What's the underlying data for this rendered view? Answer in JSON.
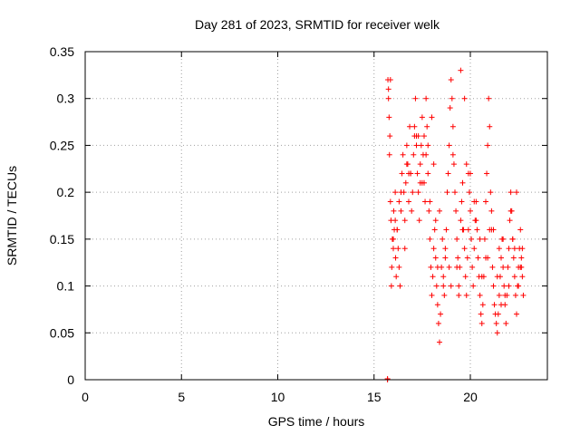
{
  "chart_data": {
    "type": "scatter",
    "title": "Day 281 of 2023, SRMTID for receiver welk",
    "xlabel": "GPS time / hours",
    "ylabel": "SRMTID / TECUs",
    "xlim": [
      0,
      24
    ],
    "ylim": [
      0,
      0.35
    ],
    "xticks": [
      0,
      5,
      10,
      15,
      20
    ],
    "xtick_labels": [
      "0",
      "5",
      "10",
      "15",
      "20"
    ],
    "yticks": [
      0,
      0.05,
      0.1,
      0.15,
      0.2,
      0.25,
      0.3,
      0.35
    ],
    "ytick_labels": [
      "0",
      "0.05",
      "0.1",
      "0.15",
      "0.2",
      "0.25",
      "0.3",
      "0.35"
    ],
    "grid": true,
    "marker": "+",
    "color": "#ff0000",
    "series": [
      {
        "name": "SRMTID",
        "x": [
          15.7,
          15.7,
          15.72,
          15.75,
          15.78,
          15.8,
          15.82,
          15.85,
          15.88,
          15.9,
          15.92,
          15.95,
          16.0,
          16.02,
          16.05,
          16.1,
          16.12,
          16.15,
          16.2,
          16.25,
          16.3,
          16.35,
          16.4,
          16.45,
          16.5,
          16.55,
          16.6,
          16.65,
          16.7,
          16.75,
          16.8,
          16.85,
          16.9,
          16.95,
          17.0,
          17.05,
          17.1,
          17.15,
          17.2,
          17.25,
          17.3,
          17.35,
          17.4,
          17.45,
          17.5,
          17.55,
          17.6,
          17.65,
          17.7,
          17.75,
          17.8,
          17.85,
          17.9,
          17.95,
          18.0,
          18.05,
          18.1,
          18.15,
          18.2,
          18.25,
          18.3,
          18.35,
          18.4,
          18.45,
          18.5,
          18.55,
          18.6,
          18.65,
          18.7,
          18.75,
          18.8,
          18.85,
          18.9,
          18.95,
          19.0,
          19.05,
          19.1,
          19.15,
          19.2,
          19.25,
          19.3,
          19.35,
          19.4,
          19.45,
          19.5,
          19.55,
          19.6,
          19.65,
          19.7,
          19.75,
          19.8,
          19.85,
          19.9,
          19.95,
          20.0,
          20.05,
          20.1,
          20.15,
          20.2,
          20.25,
          20.3,
          20.35,
          20.4,
          20.45,
          20.5,
          20.55,
          20.6,
          20.65,
          20.7,
          20.75,
          20.8,
          20.85,
          20.9,
          20.95,
          21.0,
          21.05,
          21.1,
          21.15,
          21.2,
          21.25,
          21.3,
          21.35,
          21.4,
          21.45,
          21.5,
          21.55,
          21.6,
          21.65,
          21.7,
          21.75,
          21.8,
          21.85,
          21.9,
          21.95,
          22.0,
          22.05,
          22.1,
          22.15,
          22.2,
          22.25,
          22.3,
          22.35,
          22.4,
          22.45,
          22.5,
          22.55,
          22.6,
          22.65,
          22.7,
          22.75,
          16.0,
          16.3,
          16.6,
          16.9,
          17.2,
          17.5,
          17.8,
          18.1,
          18.4,
          18.7,
          19.0,
          19.3,
          19.6,
          19.9,
          20.2,
          20.5,
          20.8,
          21.1,
          21.4,
          21.7,
          22.0,
          22.3,
          22.6,
          17.1,
          17.3,
          17.7,
          18.0,
          18.3,
          19.5,
          19.7,
          20.0,
          21.5,
          22.4,
          15.75,
          15.85,
          16.1,
          16.4,
          16.8,
          17.4,
          17.9,
          18.6,
          19.1,
          19.8,
          20.3,
          20.9,
          21.2,
          21.8,
          22.1,
          22.5,
          22.7,
          16.2,
          16.7,
          17.6,
          18.2,
          18.9,
          19.4,
          20.6,
          21.0,
          21.6,
          22.2,
          22.65
        ],
        "y": [
          0.0,
          0.001,
          0.32,
          0.31,
          0.28,
          0.24,
          0.26,
          0.19,
          0.17,
          0.1,
          0.12,
          0.15,
          0.14,
          0.18,
          0.16,
          0.2,
          0.13,
          0.11,
          0.16,
          0.14,
          0.12,
          0.1,
          0.18,
          0.22,
          0.24,
          0.2,
          0.17,
          0.21,
          0.25,
          0.23,
          0.19,
          0.27,
          0.22,
          0.18,
          0.2,
          0.24,
          0.26,
          0.3,
          0.25,
          0.22,
          0.2,
          0.17,
          0.23,
          0.25,
          0.28,
          0.24,
          0.21,
          0.19,
          0.3,
          0.27,
          0.22,
          0.18,
          0.15,
          0.12,
          0.09,
          0.11,
          0.14,
          0.16,
          0.13,
          0.1,
          0.08,
          0.06,
          0.04,
          0.07,
          0.12,
          0.15,
          0.11,
          0.09,
          0.13,
          0.16,
          0.2,
          0.22,
          0.25,
          0.29,
          0.32,
          0.3,
          0.27,
          0.23,
          0.2,
          0.18,
          0.15,
          0.13,
          0.1,
          0.12,
          0.17,
          0.19,
          0.21,
          0.16,
          0.14,
          0.11,
          0.09,
          0.13,
          0.16,
          0.2,
          0.18,
          0.15,
          0.12,
          0.1,
          0.14,
          0.17,
          0.19,
          0.16,
          0.13,
          0.11,
          0.09,
          0.07,
          0.06,
          0.08,
          0.11,
          0.15,
          0.19,
          0.22,
          0.25,
          0.3,
          0.27,
          0.2,
          0.16,
          0.12,
          0.1,
          0.08,
          0.07,
          0.06,
          0.05,
          0.07,
          0.09,
          0.11,
          0.13,
          0.15,
          0.12,
          0.1,
          0.08,
          0.06,
          0.09,
          0.12,
          0.14,
          0.17,
          0.2,
          0.18,
          0.15,
          0.13,
          0.11,
          0.09,
          0.07,
          0.1,
          0.12,
          0.14,
          0.16,
          0.13,
          0.11,
          0.09,
          0.15,
          0.19,
          0.14,
          0.22,
          0.26,
          0.21,
          0.25,
          0.23,
          0.18,
          0.14,
          0.1,
          0.12,
          0.16,
          0.22,
          0.19,
          0.15,
          0.13,
          0.18,
          0.11,
          0.15,
          0.1,
          0.14,
          0.12,
          0.27,
          0.26,
          0.24,
          0.28,
          0.12,
          0.33,
          0.3,
          0.22,
          0.14,
          0.2,
          0.3,
          0.32,
          0.17,
          0.2,
          0.22,
          0.21,
          0.19,
          0.1,
          0.24,
          0.23,
          0.17,
          0.13,
          0.16,
          0.09,
          0.18,
          0.1,
          0.14,
          0.16,
          0.23,
          0.26,
          0.17,
          0.12,
          0.09,
          0.11,
          0.16,
          0.08,
          0.15,
          0.12
        ]
      }
    ]
  }
}
